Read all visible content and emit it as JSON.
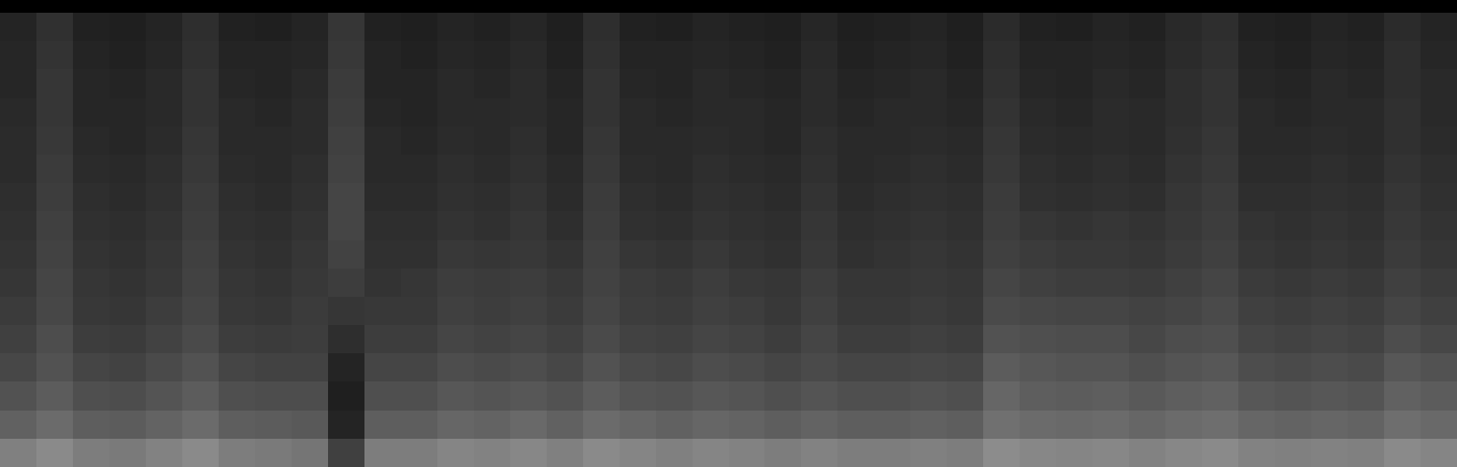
{
  "chart_data": {
    "type": "heatmap",
    "tick_labels": false,
    "color": "#ffffff",
    "zlim": [
      0,
      100
    ],
    "cells": [
      [
        14,
        19,
        13,
        12,
        14,
        18,
        13,
        12,
        14,
        21,
        13,
        12,
        14,
        13,
        15,
        12,
        18,
        13,
        12,
        14,
        13,
        12,
        15,
        12,
        13,
        14,
        12,
        17,
        13,
        12,
        14,
        13,
        16,
        18,
        13,
        12,
        14,
        13,
        17,
        14
      ],
      [
        15,
        20,
        14,
        13,
        15,
        19,
        14,
        14,
        15,
        22,
        14,
        13,
        15,
        14,
        16,
        13,
        19,
        14,
        14,
        15,
        14,
        13,
        16,
        13,
        14,
        15,
        13,
        18,
        14,
        14,
        15,
        14,
        17,
        19,
        14,
        13,
        15,
        14,
        18,
        15
      ],
      [
        15,
        21,
        15,
        14,
        16,
        20,
        15,
        14,
        16,
        23,
        14,
        14,
        16,
        15,
        17,
        14,
        20,
        15,
        14,
        16,
        15,
        14,
        17,
        14,
        15,
        16,
        14,
        19,
        15,
        14,
        16,
        15,
        18,
        20,
        15,
        14,
        16,
        15,
        18,
        16
      ],
      [
        16,
        21,
        15,
        15,
        16,
        20,
        16,
        15,
        17,
        24,
        15,
        14,
        16,
        16,
        17,
        15,
        20,
        16,
        15,
        16,
        16,
        15,
        17,
        15,
        16,
        16,
        15,
        20,
        16,
        15,
        17,
        16,
        18,
        20,
        16,
        15,
        16,
        16,
        19,
        16
      ],
      [
        17,
        22,
        16,
        15,
        17,
        21,
        16,
        16,
        17,
        25,
        16,
        15,
        17,
        16,
        18,
        15,
        21,
        16,
        16,
        17,
        16,
        15,
        18,
        16,
        16,
        17,
        16,
        21,
        17,
        16,
        17,
        16,
        19,
        21,
        16,
        16,
        17,
        16,
        19,
        17
      ],
      [
        17,
        23,
        17,
        16,
        18,
        22,
        17,
        16,
        18,
        26,
        16,
        16,
        18,
        17,
        19,
        16,
        22,
        17,
        16,
        18,
        17,
        16,
        19,
        16,
        17,
        18,
        17,
        22,
        18,
        17,
        18,
        17,
        20,
        22,
        17,
        17,
        18,
        17,
        20,
        18
      ],
      [
        18,
        24,
        18,
        17,
        19,
        23,
        18,
        17,
        19,
        27,
        17,
        17,
        19,
        18,
        20,
        17,
        23,
        18,
        17,
        19,
        18,
        17,
        20,
        17,
        18,
        19,
        18,
        23,
        19,
        18,
        19,
        18,
        21,
        23,
        18,
        18,
        19,
        18,
        21,
        19
      ],
      [
        19,
        25,
        19,
        18,
        20,
        24,
        19,
        18,
        20,
        27,
        18,
        18,
        20,
        19,
        21,
        18,
        24,
        19,
        18,
        20,
        19,
        18,
        21,
        18,
        19,
        20,
        19,
        24,
        21,
        20,
        21,
        20,
        22,
        24,
        20,
        19,
        20,
        19,
        22,
        20
      ],
      [
        20,
        26,
        20,
        19,
        21,
        25,
        20,
        19,
        21,
        26,
        19,
        19,
        22,
        21,
        22,
        20,
        25,
        21,
        20,
        22,
        20,
        19,
        22,
        19,
        20,
        21,
        20,
        25,
        23,
        22,
        22,
        21,
        23,
        25,
        21,
        20,
        21,
        20,
        23,
        21
      ],
      [
        21,
        27,
        21,
        20,
        22,
        26,
        21,
        20,
        22,
        24,
        20,
        21,
        24,
        23,
        24,
        22,
        26,
        23,
        22,
        24,
        22,
        21,
        24,
        21,
        21,
        22,
        21,
        27,
        25,
        24,
        24,
        23,
        25,
        27,
        23,
        22,
        23,
        22,
        25,
        23
      ],
      [
        23,
        28,
        22,
        21,
        24,
        27,
        22,
        21,
        23,
        21,
        22,
        22,
        25,
        24,
        25,
        23,
        27,
        24,
        23,
        25,
        24,
        22,
        25,
        22,
        22,
        23,
        22,
        29,
        28,
        27,
        27,
        26,
        27,
        29,
        25,
        24,
        25,
        24,
        27,
        25
      ],
      [
        25,
        30,
        24,
        23,
        26,
        29,
        24,
        23,
        24,
        18,
        24,
        24,
        27,
        26,
        27,
        25,
        29,
        26,
        25,
        27,
        26,
        24,
        27,
        24,
        24,
        25,
        24,
        32,
        31,
        30,
        30,
        28,
        30,
        31,
        27,
        26,
        27,
        26,
        30,
        28
      ],
      [
        28,
        32,
        27,
        26,
        29,
        32,
        27,
        26,
        26,
        14,
        27,
        27,
        30,
        29,
        30,
        28,
        32,
        29,
        28,
        30,
        29,
        27,
        29,
        27,
        27,
        28,
        27,
        36,
        34,
        33,
        33,
        31,
        33,
        34,
        30,
        29,
        30,
        29,
        34,
        32
      ],
      [
        32,
        36,
        31,
        30,
        33,
        36,
        31,
        30,
        30,
        12,
        31,
        31,
        34,
        33,
        34,
        32,
        36,
        33,
        32,
        34,
        33,
        31,
        33,
        31,
        31,
        32,
        31,
        40,
        37,
        36,
        37,
        35,
        37,
        38,
        34,
        33,
        34,
        33,
        38,
        36
      ],
      [
        38,
        42,
        37,
        36,
        39,
        42,
        37,
        36,
        35,
        14,
        37,
        37,
        40,
        39,
        41,
        38,
        42,
        40,
        38,
        40,
        39,
        37,
        39,
        37,
        37,
        38,
        37,
        44,
        42,
        41,
        42,
        40,
        42,
        43,
        40,
        39,
        40,
        39,
        43,
        41
      ],
      [
        50,
        54,
        49,
        48,
        51,
        54,
        49,
        48,
        46,
        25,
        49,
        49,
        52,
        51,
        53,
        50,
        54,
        52,
        50,
        52,
        51,
        49,
        51,
        49,
        49,
        50,
        49,
        55,
        53,
        52,
        53,
        51,
        53,
        54,
        51,
        50,
        51,
        50,
        54,
        52
      ]
    ]
  }
}
